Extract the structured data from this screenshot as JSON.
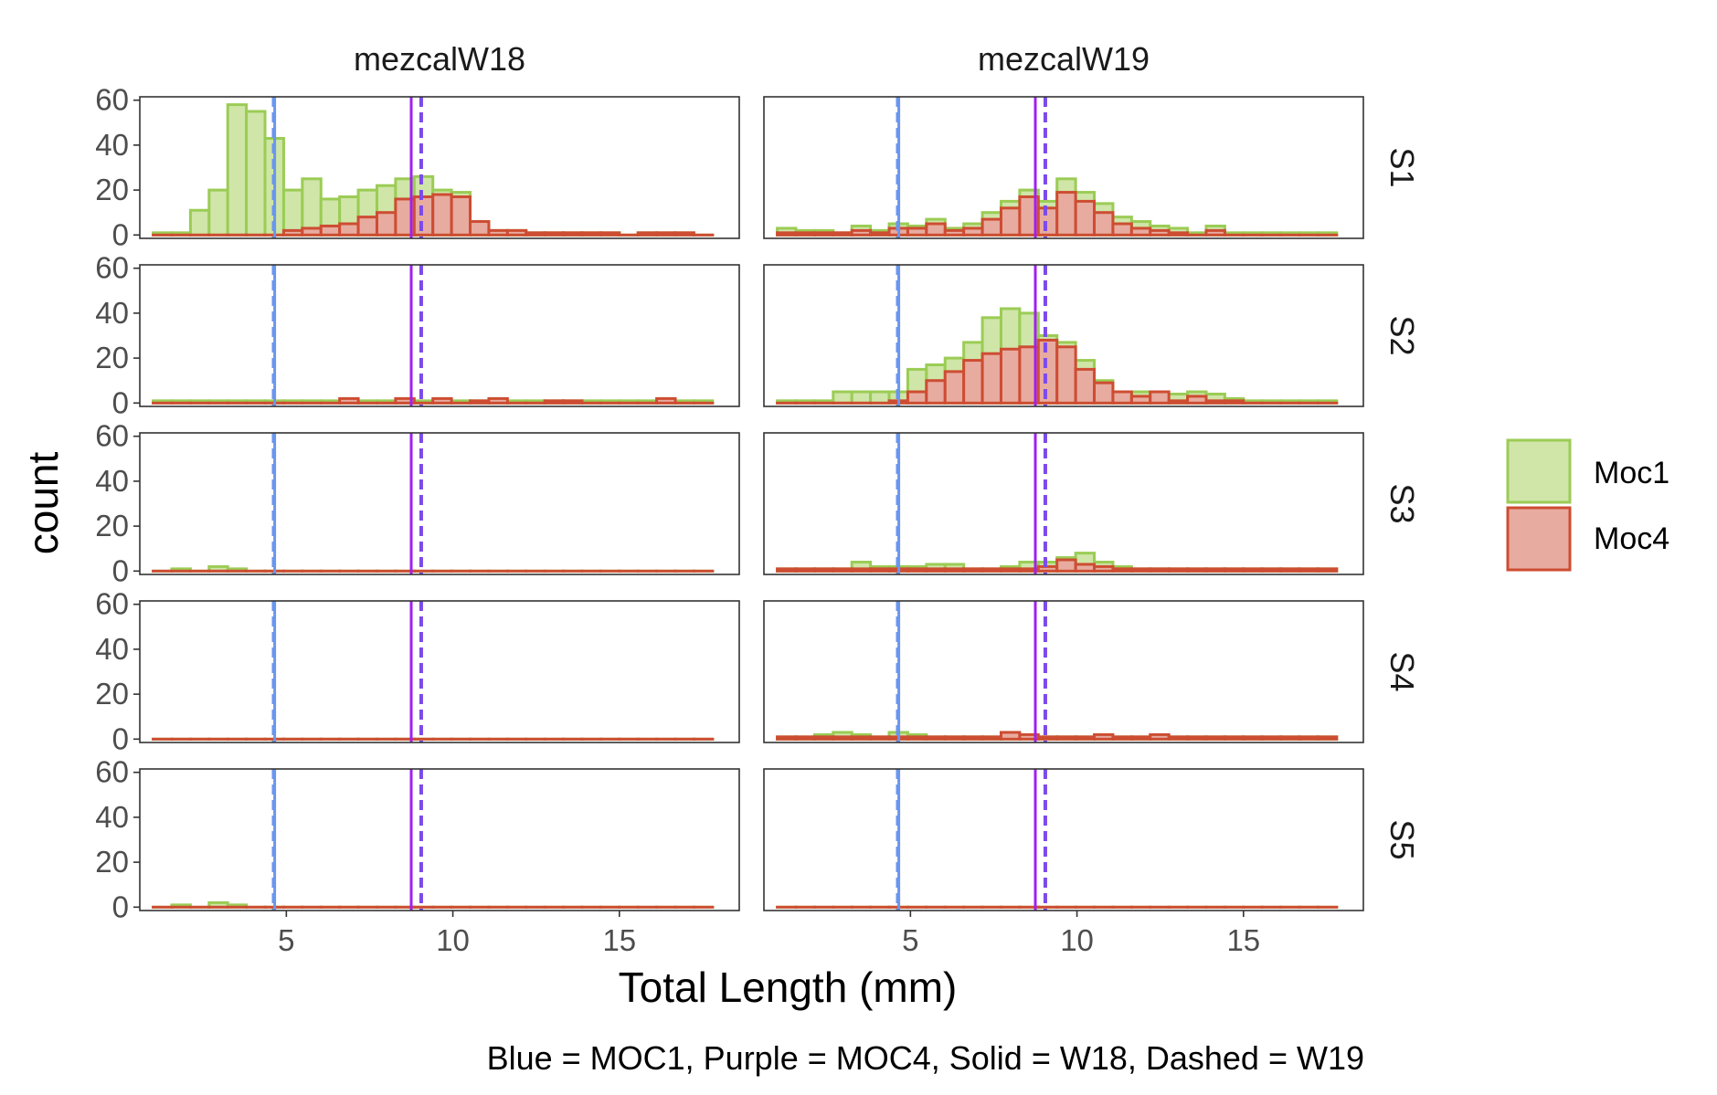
{
  "chart_data": {
    "type": "histogram",
    "facets": {
      "columns": [
        "mezcalW18",
        "mezcalW19"
      ],
      "rows": [
        "S1",
        "S2",
        "S3",
        "S4",
        "S5"
      ]
    },
    "xlabel": "Total Length (mm)",
    "ylabel": "count",
    "xlim": [
      0.6,
      18.6
    ],
    "ylim": [
      -1.5,
      61.5
    ],
    "x_ticks": [
      5,
      10,
      15
    ],
    "y_ticks": [
      0,
      20,
      40,
      60
    ],
    "bin_start": 1.0,
    "bin_width": 0.56,
    "bin_count": 30,
    "series": [
      {
        "name": "Moc1",
        "fill": "#cfe6a8",
        "stroke": "#9bcc55"
      },
      {
        "name": "Moc4",
        "fill": "#e8aba0",
        "stroke": "#cd4d32"
      }
    ],
    "panels": [
      {
        "column": "mezcalW18",
        "row": "S1",
        "Moc1": [
          1,
          1,
          11,
          20,
          58,
          55,
          43,
          20,
          25,
          16,
          17,
          20,
          22,
          25,
          26,
          20,
          19,
          6,
          2,
          2,
          1,
          1,
          1,
          1,
          1,
          0,
          1,
          1,
          1,
          0
        ],
        "Moc4": [
          0,
          0,
          0,
          0,
          0,
          0,
          0,
          2,
          3,
          4,
          5,
          8,
          10,
          16,
          17,
          18,
          17,
          6,
          2,
          2,
          1,
          1,
          1,
          1,
          1,
          0,
          1,
          1,
          1,
          0
        ]
      },
      {
        "column": "mezcalW18",
        "row": "S2",
        "Moc1": [
          1,
          1,
          1,
          1,
          1,
          1,
          1,
          1,
          1,
          1,
          1,
          1,
          1,
          1,
          1,
          1,
          1,
          1,
          1,
          1,
          1,
          1,
          1,
          1,
          1,
          1,
          1,
          1,
          1,
          1
        ],
        "Moc4": [
          0,
          0,
          0,
          0,
          0,
          0,
          0,
          0,
          0,
          0,
          2,
          0,
          0,
          2,
          0,
          2,
          0,
          1,
          2,
          0,
          0,
          1,
          1,
          0,
          0,
          0,
          0,
          2,
          0,
          0
        ]
      },
      {
        "column": "mezcalW18",
        "row": "S3",
        "Moc1": [
          0,
          1,
          0,
          2,
          1,
          0,
          0,
          0,
          0,
          0,
          0,
          0,
          0,
          0,
          0,
          0,
          0,
          0,
          0,
          0,
          0,
          0,
          0,
          0,
          0,
          0,
          0,
          0,
          0,
          0
        ],
        "Moc4": [
          0,
          0,
          0,
          0,
          0,
          0,
          0,
          0,
          0,
          0,
          0,
          0,
          0,
          0,
          0,
          0,
          0,
          0,
          0,
          0,
          0,
          0,
          0,
          0,
          0,
          0,
          0,
          0,
          0,
          0
        ]
      },
      {
        "column": "mezcalW18",
        "row": "S4",
        "Moc1": [
          0,
          0,
          0,
          0,
          0,
          0,
          0,
          0,
          0,
          0,
          0,
          0,
          0,
          0,
          0,
          0,
          0,
          0,
          0,
          0,
          0,
          0,
          0,
          0,
          0,
          0,
          0,
          0,
          0,
          0
        ],
        "Moc4": [
          0,
          0,
          0,
          0,
          0,
          0,
          0,
          0,
          0,
          0,
          0,
          0,
          0,
          0,
          0,
          0,
          0,
          0,
          0,
          0,
          0,
          0,
          0,
          0,
          0,
          0,
          0,
          0,
          0,
          0
        ]
      },
      {
        "column": "mezcalW18",
        "row": "S5",
        "Moc1": [
          0,
          1,
          0,
          2,
          1,
          0,
          0,
          0,
          0,
          0,
          0,
          0,
          0,
          0,
          0,
          0,
          0,
          0,
          0,
          0,
          0,
          0,
          0,
          0,
          0,
          0,
          0,
          0,
          0,
          0
        ],
        "Moc4": [
          0,
          0,
          0,
          0,
          0,
          0,
          0,
          0,
          0,
          0,
          0,
          0,
          0,
          0,
          0,
          0,
          0,
          0,
          0,
          0,
          0,
          0,
          0,
          0,
          0,
          0,
          0,
          0,
          0,
          0
        ]
      },
      {
        "column": "mezcalW19",
        "row": "S1",
        "Moc1": [
          3,
          2,
          2,
          1,
          4,
          2,
          5,
          4,
          7,
          3,
          5,
          10,
          15,
          20,
          15,
          25,
          19,
          14,
          8,
          6,
          4,
          3,
          1,
          4,
          1,
          1,
          1,
          1,
          1,
          1
        ],
        "Moc4": [
          1,
          1,
          1,
          1,
          2,
          1,
          3,
          3,
          5,
          2,
          3,
          7,
          12,
          17,
          12,
          19,
          15,
          10,
          5,
          3,
          2,
          1,
          0,
          2,
          0,
          0,
          0,
          0,
          0,
          0
        ]
      },
      {
        "column": "mezcalW19",
        "row": "S2",
        "Moc1": [
          1,
          1,
          1,
          5,
          5,
          5,
          5,
          15,
          17,
          20,
          27,
          38,
          42,
          40,
          30,
          27,
          19,
          10,
          5,
          5,
          4,
          4,
          5,
          4,
          2,
          1,
          1,
          1,
          1,
          1
        ],
        "Moc4": [
          0,
          0,
          0,
          0,
          0,
          0,
          1,
          5,
          10,
          14,
          19,
          22,
          24,
          25,
          28,
          25,
          15,
          9,
          5,
          3,
          5,
          1,
          3,
          1,
          1,
          0,
          0,
          0,
          0,
          0
        ]
      },
      {
        "column": "mezcalW19",
        "row": "S3",
        "Moc1": [
          1,
          1,
          1,
          1,
          4,
          2,
          2,
          2,
          3,
          3,
          1,
          1,
          2,
          4,
          4,
          6,
          8,
          4,
          2,
          1,
          1,
          1,
          1,
          1,
          1,
          1,
          1,
          1,
          1,
          1
        ],
        "Moc4": [
          1,
          1,
          1,
          1,
          1,
          1,
          1,
          1,
          1,
          1,
          1,
          1,
          1,
          1,
          2,
          5,
          3,
          2,
          1,
          1,
          1,
          1,
          1,
          1,
          1,
          1,
          1,
          1,
          1,
          1
        ]
      },
      {
        "column": "mezcalW19",
        "row": "S4",
        "Moc1": [
          1,
          1,
          2,
          3,
          2,
          1,
          3,
          2,
          1,
          1,
          1,
          1,
          1,
          1,
          1,
          1,
          1,
          1,
          1,
          1,
          1,
          1,
          1,
          1,
          1,
          1,
          1,
          1,
          1,
          1
        ],
        "Moc4": [
          1,
          1,
          1,
          1,
          1,
          1,
          1,
          1,
          1,
          1,
          1,
          1,
          3,
          2,
          1,
          1,
          1,
          2,
          1,
          1,
          2,
          1,
          1,
          1,
          1,
          1,
          1,
          1,
          1,
          1
        ]
      },
      {
        "column": "mezcalW19",
        "row": "S5",
        "Moc1": [
          0,
          0,
          0,
          0,
          0,
          0,
          0,
          0,
          0,
          0,
          0,
          0,
          0,
          0,
          0,
          0,
          0,
          0,
          0,
          0,
          0,
          0,
          0,
          0,
          0,
          0,
          0,
          0,
          0,
          0
        ],
        "Moc4": [
          0,
          0,
          0,
          0,
          0,
          0,
          0,
          0,
          0,
          0,
          0,
          0,
          0,
          0,
          0,
          0,
          0,
          0,
          0,
          0,
          0,
          0,
          0,
          0,
          0,
          0,
          0,
          0,
          0,
          0
        ]
      }
    ],
    "reference_lines": [
      {
        "id": "moc1-w18",
        "x": 4.65,
        "color": "#6a96ee",
        "style": "solid"
      },
      {
        "id": "moc1-w19",
        "x": 4.62,
        "color": "#6a96ee",
        "style": "dashed"
      },
      {
        "id": "moc4-w18",
        "x": 8.75,
        "color": "#a020f0",
        "style": "solid"
      },
      {
        "id": "moc4-w19",
        "x": 9.05,
        "color": "#7b4bea",
        "style": "dashed"
      }
    ],
    "legend": {
      "position": "right",
      "items": [
        "Moc1",
        "Moc4"
      ]
    },
    "caption": "Blue = MOC1, Purple = MOC4, Solid = W18, Dashed = W19",
    "grid": false
  }
}
